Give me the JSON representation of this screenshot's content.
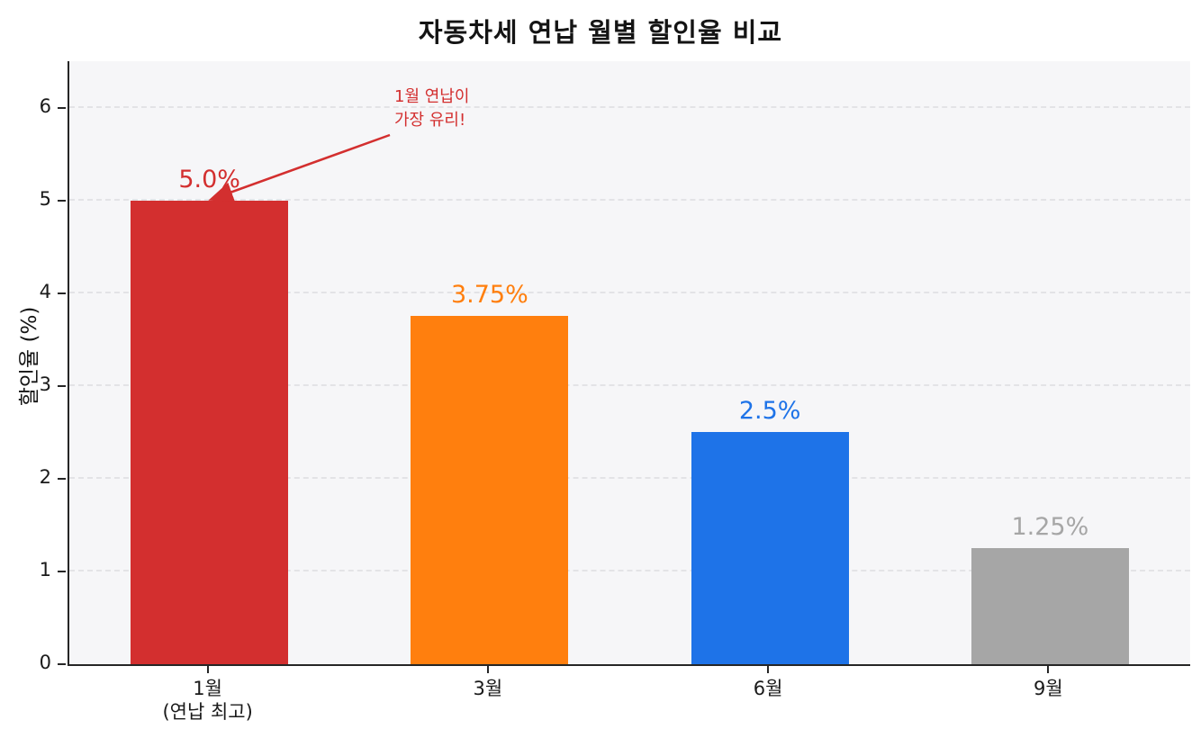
{
  "chart_data": {
    "type": "bar",
    "title": "자동차세 연납 월별 할인율 비교",
    "ylabel": "할인율 (%)",
    "xlabel": "",
    "categories": [
      "1월",
      "3월",
      "6월",
      "9월"
    ],
    "category_sublabels": [
      "(연납 최고)",
      "",
      "",
      ""
    ],
    "values": [
      5.0,
      3.75,
      2.5,
      1.25
    ],
    "data_labels": [
      "5.0%",
      "3.75%",
      "2.5%",
      "1.25%"
    ],
    "bar_colors": [
      "#d32f2f",
      "#ff7f0e",
      "#1e73e8",
      "#a6a6a6"
    ],
    "ylim": [
      0,
      6.5
    ],
    "yticks": [
      0,
      1,
      2,
      3,
      4,
      5,
      6
    ],
    "grid": "dashed horizontal gridlines, light gray plot background",
    "legend": "none",
    "annotation": {
      "text_lines": [
        "1월 연납이",
        "가장 유리!"
      ],
      "color": "#d32f2f",
      "target": "top of 1월 bar"
    }
  }
}
